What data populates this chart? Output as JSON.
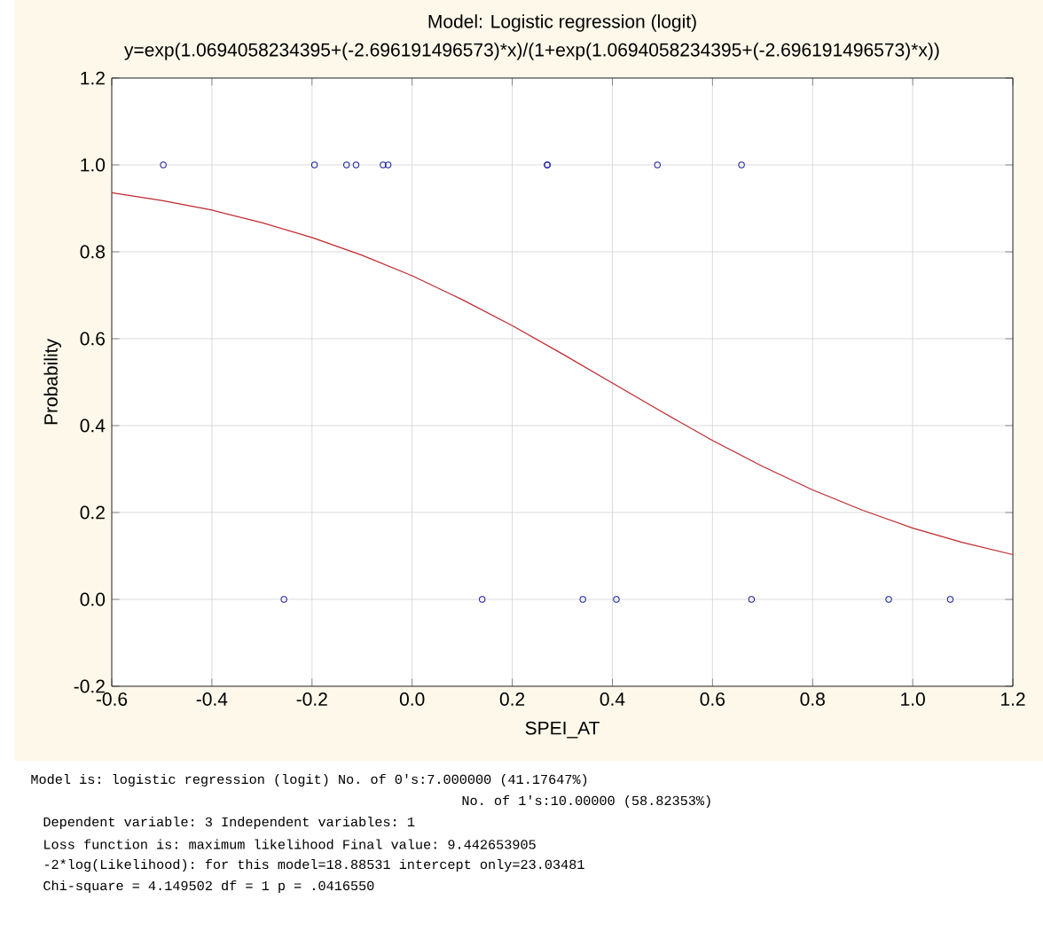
{
  "chart_data": {
    "type": "scatter",
    "title": "Model: Logistic regression (logit)",
    "subtitle": "y=exp(1.0694058234395+(-2.696191496573)*x)/(1+exp(1.0694058234395+(-2.696191496573)*x))",
    "xlabel": "SPEI_AT",
    "ylabel": "Probability",
    "xlim": [
      -0.6,
      1.2
    ],
    "ylim": [
      -0.2,
      1.2
    ],
    "xticks": [
      {
        "value": -0.6,
        "label": "-0.6"
      },
      {
        "value": -0.4,
        "label": "-0.4"
      },
      {
        "value": -0.2,
        "label": "-0.2"
      },
      {
        "value": 0,
        "label": "0.0"
      },
      {
        "value": 0.2,
        "label": "0.2"
      },
      {
        "value": 0.4,
        "label": "0.4"
      },
      {
        "value": 0.6,
        "label": "0.6"
      },
      {
        "value": 0.8,
        "label": "0.8"
      },
      {
        "value": 1.0,
        "label": "1.0"
      },
      {
        "value": 1.2,
        "label": "1.2"
      }
    ],
    "yticks": [
      {
        "value": -0.2,
        "label": "-0.2"
      },
      {
        "value": 0,
        "label": "0.0"
      },
      {
        "value": 0.2,
        "label": "0.2"
      },
      {
        "value": 0.4,
        "label": "0.4"
      },
      {
        "value": 0.6,
        "label": "0.6"
      },
      {
        "value": 0.8,
        "label": "0.8"
      },
      {
        "value": 1.0,
        "label": "1.0"
      },
      {
        "value": 1.2,
        "label": "1.2"
      }
    ],
    "grid": true,
    "marker": "circle",
    "series": [
      {
        "color": "#1a1aa0",
        "x": [
          -0.497,
          -0.195,
          -0.131,
          -0.112,
          -0.058,
          -0.048,
          0.27,
          0.27,
          0.49,
          0.658,
          -0.256,
          0.14,
          0.341,
          0.408,
          0.678,
          0.952,
          1.075
        ],
        "values": [
          1,
          1,
          1,
          1,
          1,
          1,
          1,
          1,
          1,
          1,
          0,
          0,
          0,
          0,
          0,
          0,
          0
        ]
      },
      {
        "type": "line",
        "marker": "none",
        "color": "#c0282d",
        "x": [
          -0.6,
          -0.5,
          -0.4,
          -0.3,
          -0.2,
          -0.1,
          0,
          0.1,
          0.2,
          0.3,
          0.4,
          0.5,
          0.6,
          0.7,
          0.8,
          0.9,
          1.0,
          1.1,
          1.2
        ],
        "values": [
          0.936,
          0.918,
          0.896,
          0.867,
          0.833,
          0.792,
          0.745,
          0.69,
          0.63,
          0.565,
          0.498,
          0.431,
          0.366,
          0.306,
          0.252,
          0.205,
          0.164,
          0.131,
          0.103
        ]
      }
    ],
    "annotations": [
      "Model is: logistic regression (logit)  No. of 0's:7.000000 (41.17647%)",
      "No. of 1's:10.00000 (58.82353%)",
      "Dependent variable: 3   Independent variables:  1",
      "Loss function is:  maximum likelihood  Final value:  9.442653905",
      "-2*log(Likelihood): for this model=18.88531   intercept only=23.03481",
      "Chi-square = 4.149502   df =   1   p =  .0416550"
    ]
  }
}
